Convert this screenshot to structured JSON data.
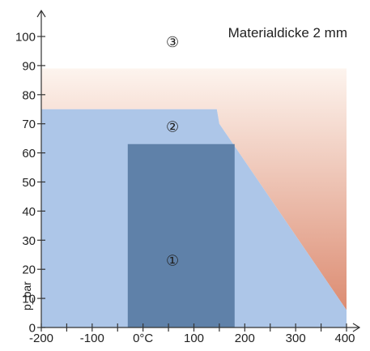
{
  "chart_data": {
    "type": "area",
    "title": "Materialdicke 2 mm",
    "ylabel": "p_bar",
    "xlabel": "",
    "xlim": [
      -200,
      400
    ],
    "ylim": [
      0,
      105
    ],
    "x_ticks": [
      -200,
      -150,
      -100,
      -50,
      0,
      50,
      100,
      150,
      200,
      250,
      300,
      350,
      400
    ],
    "x_tick_labels": [
      {
        "x": -200,
        "label": "-200"
      },
      {
        "x": -100,
        "label": "-100"
      },
      {
        "x": 0,
        "label": "0°C"
      },
      {
        "x": 100,
        "label": "100"
      },
      {
        "x": 200,
        "label": "200"
      },
      {
        "x": 300,
        "label": "300"
      },
      {
        "x": 400,
        "label": "400"
      }
    ],
    "y_ticks": [
      0,
      10,
      20,
      30,
      40,
      50,
      60,
      70,
      80,
      90,
      100
    ],
    "grid": false,
    "colors": {
      "zone1": "#5f81a9",
      "zone2": "#adc6e8",
      "zone3_top": "#fdf4ee",
      "zone3_bottom": "#dc8c72",
      "axis": "#333333"
    },
    "regions": [
      {
        "id": "1",
        "label": "①",
        "points": [
          [
            -30,
            0
          ],
          [
            -30,
            63
          ],
          [
            180,
            63
          ],
          [
            180,
            0
          ]
        ],
        "label_at": [
          58,
          23
        ]
      },
      {
        "id": "2",
        "label": "②",
        "points": [
          [
            -200,
            0
          ],
          [
            -200,
            75
          ],
          [
            145,
            75
          ],
          [
            150,
            70
          ],
          [
            400,
            6
          ],
          [
            400,
            0
          ]
        ],
        "label_at": [
          58,
          69
        ]
      },
      {
        "id": "3",
        "label": "③",
        "points": [
          [
            -200,
            75
          ],
          [
            -200,
            89
          ],
          [
            400,
            89
          ],
          [
            400,
            6
          ],
          [
            150,
            70
          ],
          [
            145,
            75
          ]
        ],
        "label_at": [
          58,
          98
        ]
      }
    ]
  }
}
